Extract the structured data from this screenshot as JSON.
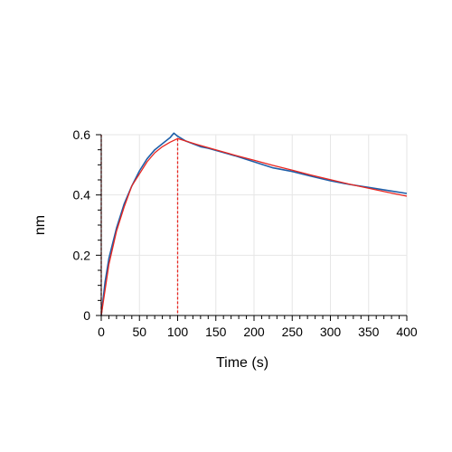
{
  "chart_data": {
    "type": "line",
    "title": "",
    "xlabel": "Time (s)",
    "ylabel": "nm",
    "xlim": [
      0,
      400
    ],
    "ylim": [
      0,
      0.6
    ],
    "x_ticks": [
      "0",
      "50",
      "100",
      "150",
      "200",
      "250",
      "300",
      "350",
      "400"
    ],
    "y_ticks": [
      "0",
      "0.2",
      "0.4",
      "0.6"
    ],
    "grid": true,
    "legend": "none",
    "series": [
      {
        "color": "#1f5fa8",
        "points": [
          [
            0,
            0
          ],
          [
            5,
            0.11
          ],
          [
            10,
            0.19
          ],
          [
            20,
            0.29
          ],
          [
            30,
            0.37
          ],
          [
            40,
            0.43
          ],
          [
            50,
            0.48
          ],
          [
            60,
            0.52
          ],
          [
            70,
            0.55
          ],
          [
            80,
            0.57
          ],
          [
            90,
            0.59
          ],
          [
            95,
            0.605
          ],
          [
            100,
            0.595
          ],
          [
            110,
            0.58
          ],
          [
            120,
            0.57
          ],
          [
            130,
            0.56
          ],
          [
            140,
            0.555
          ],
          [
            150,
            0.548
          ],
          [
            175,
            0.53
          ],
          [
            200,
            0.51
          ],
          [
            225,
            0.49
          ],
          [
            250,
            0.478
          ],
          [
            275,
            0.462
          ],
          [
            300,
            0.447
          ],
          [
            325,
            0.435
          ],
          [
            350,
            0.425
          ],
          [
            375,
            0.415
          ],
          [
            400,
            0.405
          ]
        ]
      },
      {
        "color": "#e8251f",
        "points": [
          [
            0,
            0
          ],
          [
            10,
            0.17
          ],
          [
            20,
            0.28
          ],
          [
            30,
            0.36
          ],
          [
            40,
            0.43
          ],
          [
            50,
            0.47
          ],
          [
            60,
            0.51
          ],
          [
            70,
            0.54
          ],
          [
            80,
            0.56
          ],
          [
            90,
            0.575
          ],
          [
            100,
            0.587
          ],
          [
            125,
            0.568
          ],
          [
            150,
            0.55
          ],
          [
            175,
            0.532
          ],
          [
            200,
            0.515
          ],
          [
            225,
            0.498
          ],
          [
            250,
            0.482
          ],
          [
            275,
            0.466
          ],
          [
            300,
            0.451
          ],
          [
            325,
            0.436
          ],
          [
            350,
            0.422
          ],
          [
            375,
            0.409
          ],
          [
            400,
            0.396
          ]
        ]
      }
    ],
    "markers": [
      {
        "type": "vline",
        "x": 0,
        "style": "dashed",
        "color": "#e8251f"
      },
      {
        "type": "vline",
        "x": 100,
        "style": "dashed",
        "color": "#e8251f"
      }
    ]
  }
}
